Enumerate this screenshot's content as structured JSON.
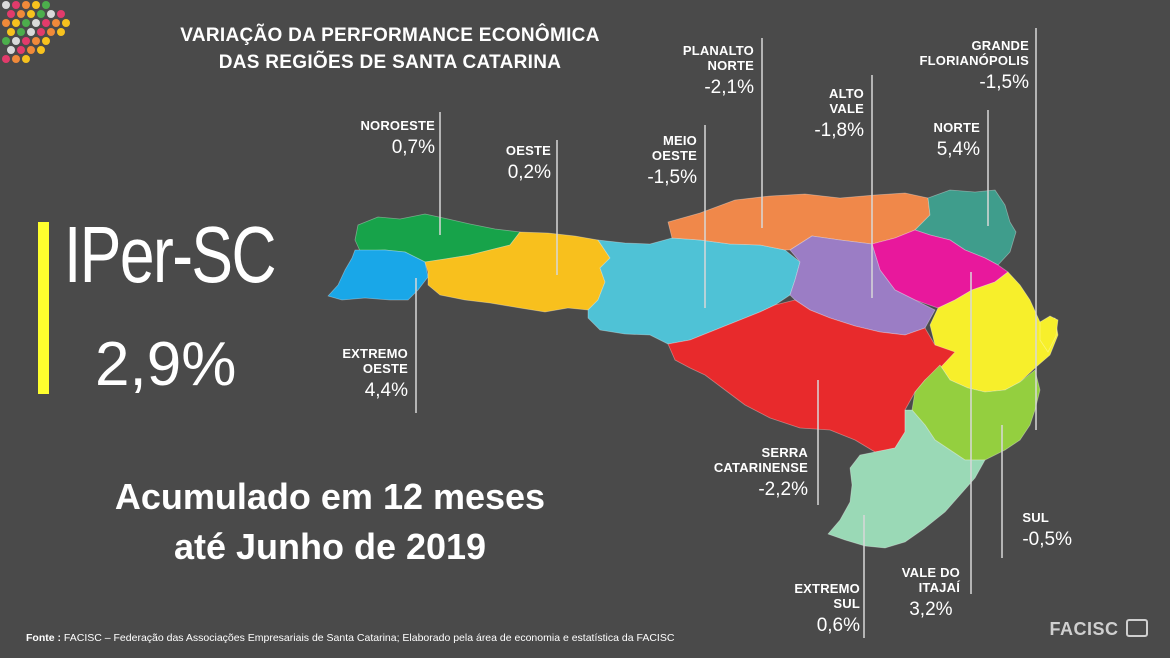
{
  "title": {
    "line1": "VARIAÇÃO DA PERFORMANCE ECONÔMICA",
    "line2": "DAS REGIÕES DE SANTA CATARINA"
  },
  "index": {
    "name": "IPer-SC",
    "value": "2,9%"
  },
  "period": {
    "line1": "Acumulado em 12 meses",
    "line2": "até Junho de 2019"
  },
  "regions": [
    {
      "key": "noroeste",
      "name": "NOROESTE",
      "value": "0,7%",
      "color": "#17a34a"
    },
    {
      "key": "oeste",
      "name": "OESTE",
      "value": "0,2%",
      "color": "#f8c01d"
    },
    {
      "key": "extremo_oeste",
      "name": "EXTREMO OESTE",
      "value": "4,4%",
      "color": "#19a7e8"
    },
    {
      "key": "meio_oeste",
      "name": "MEIO OESTE",
      "value": "-1,5%",
      "color": "#4fc2d6"
    },
    {
      "key": "planalto_norte",
      "name": "PLANALTO NORTE",
      "value": "-2,1%",
      "color": "#f0884a"
    },
    {
      "key": "alto_vale",
      "name": "ALTO VALE",
      "value": "-1,8%",
      "color": "#9b7dc5"
    },
    {
      "key": "grande_florianopolis",
      "name": "GRANDE FLORIANÓPOLIS",
      "value": "-1,5%",
      "color": "#94cf3f"
    },
    {
      "key": "norte",
      "name": "NORTE",
      "value": "5,4%",
      "color": "#e8189c"
    },
    {
      "key": "serra_catarinense",
      "name": "SERRA CATARINENSE",
      "value": "-2,2%",
      "color": "#e82a2c"
    },
    {
      "key": "sul",
      "name": "SUL",
      "value": "-0,5%",
      "color": "#9ad9b6"
    },
    {
      "key": "vale_do_itajai",
      "name": "VALE DO ITAJAÍ",
      "value": "3,2%",
      "color": "#f7ef2b"
    },
    {
      "key": "extremo_sul",
      "name": "EXTREMO SUL",
      "value": "0,6%",
      "color": "#8fd4b4"
    },
    {
      "key": "nordeste_teal",
      "name": "",
      "value": "",
      "color": "#3f9d8c"
    }
  ],
  "labels": {
    "noroeste": {
      "line1": "NOROESTE",
      "value": "0,7%"
    },
    "oeste": {
      "line1": "OESTE",
      "value": "0,2%"
    },
    "extremo_oeste": {
      "line1": "EXTREMO",
      "line2": "OESTE",
      "value": "4,4%"
    },
    "meio_oeste": {
      "line1": "MEIO",
      "line2": "OESTE",
      "value": "-1,5%"
    },
    "planalto_norte": {
      "line1": "PLANALTO",
      "line2": "NORTE",
      "value": "-2,1%"
    },
    "alto_vale": {
      "line1": "ALTO",
      "line2": "VALE",
      "value": "-1,8%"
    },
    "grande_florianopolis": {
      "line1": "GRANDE",
      "line2": "FLORIANÓPOLIS",
      "value": "-1,5%"
    },
    "norte": {
      "line1": "NORTE",
      "value": "5,4%"
    },
    "serra_catarinense": {
      "line1": "SERRA",
      "line2": "CATARINENSE",
      "value": "-2,2%"
    },
    "sul": {
      "line1": "SUL",
      "value": "-0,5%"
    },
    "vale_do_itajai": {
      "line1": "VALE DO",
      "line2": "ITAJAÍ",
      "value": "3,2%"
    },
    "extremo_sul": {
      "line1": "EXTREMO",
      "line2": "SUL",
      "value": "0,6%"
    }
  },
  "source": {
    "prefix": "Fonte :",
    "text": " FACISC – Federação das Associações Empresariais de Santa Catarina; Elaborado pela área de economia e estatística da FACISC"
  },
  "brand": "FACISC",
  "colors": {
    "background": "#4a4a4a",
    "accent_bar": "#ffff2e",
    "text": "#ffffff"
  },
  "logo_dot_colors": [
    "#d9d9d9",
    "#e23b6b",
    "#f08a3a",
    "#f7c21e",
    "#4cae4c"
  ]
}
